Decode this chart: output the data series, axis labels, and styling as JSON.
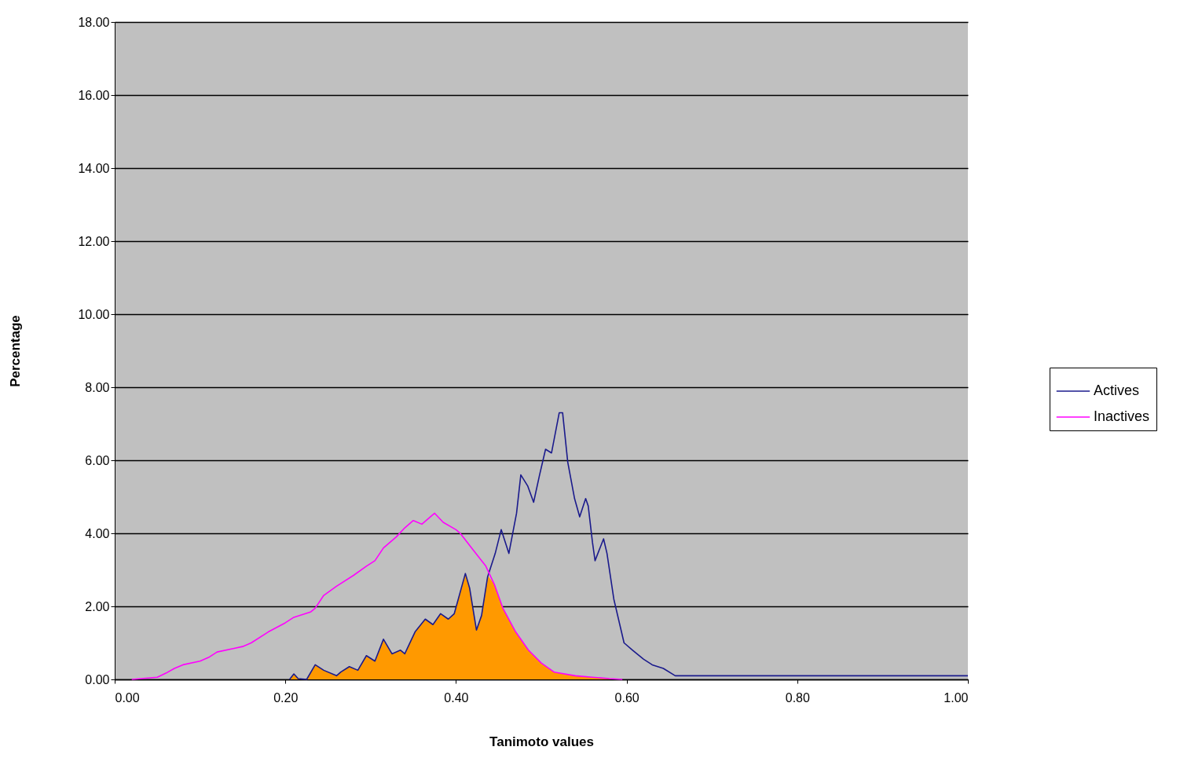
{
  "chart_data": {
    "type": "line",
    "xlabel": "Tanimoto values",
    "ylabel": "Percentage",
    "xlim": [
      0,
      1
    ],
    "ylim": [
      0,
      18
    ],
    "xticks": [
      {
        "value": 0,
        "label": "0.00"
      },
      {
        "value": 0.2,
        "label": "0.20"
      },
      {
        "value": 0.4,
        "label": "0.40"
      },
      {
        "value": 0.6,
        "label": "0.60"
      },
      {
        "value": 0.8,
        "label": "0.80"
      },
      {
        "value": 1,
        "label": "1.00"
      }
    ],
    "yticks": [
      {
        "value": 0,
        "label": "0.00"
      },
      {
        "value": 2,
        "label": "2.00"
      },
      {
        "value": 4,
        "label": "4.00"
      },
      {
        "value": 6,
        "label": "6.00"
      },
      {
        "value": 8,
        "label": "8.00"
      },
      {
        "value": 10,
        "label": "10.00"
      },
      {
        "value": 12,
        "label": "12.00"
      },
      {
        "value": 14,
        "label": "14.00"
      },
      {
        "value": 16,
        "label": "16.00"
      },
      {
        "value": 18,
        "label": "18.00"
      }
    ],
    "grid": "y",
    "legend": "right",
    "series": [
      {
        "type": "area",
        "color": "#ff9900",
        "x": [
          0.205,
          0.21,
          0.215,
          0.225,
          0.235,
          0.245,
          0.26,
          0.265,
          0.275,
          0.285,
          0.295,
          0.305,
          0.315,
          0.325,
          0.335,
          0.34,
          0.352,
          0.364,
          0.373,
          0.382,
          0.391,
          0.398,
          0.411,
          0.416,
          0.424,
          0.43,
          0.437,
          0.445,
          0.455,
          0.47,
          0.485,
          0.5,
          0.515,
          0.54,
          0.56,
          0.58,
          0.595
        ],
        "values": [
          0,
          0.15,
          0.02,
          0,
          0.4,
          0.25,
          0.1,
          0.2,
          0.35,
          0.25,
          0.65,
          0.5,
          1.1,
          0.7,
          0.8,
          0.7,
          1.3,
          1.65,
          1.5,
          1.8,
          1.65,
          1.8,
          2.9,
          2.5,
          1.35,
          1.75,
          2.85,
          2.6,
          1.95,
          1.3,
          0.8,
          0.45,
          0.2,
          0.1,
          0.06,
          0.02,
          0
        ]
      },
      {
        "name": "Actives",
        "color": "#1a1a8c",
        "x": [
          0.205,
          0.21,
          0.215,
          0.225,
          0.235,
          0.245,
          0.26,
          0.265,
          0.275,
          0.285,
          0.295,
          0.305,
          0.315,
          0.325,
          0.335,
          0.34,
          0.352,
          0.364,
          0.373,
          0.382,
          0.391,
          0.398,
          0.411,
          0.416,
          0.424,
          0.43,
          0.437,
          0.446,
          0.453,
          0.462,
          0.471,
          0.476,
          0.484,
          0.491,
          0.498,
          0.505,
          0.512,
          0.521,
          0.525,
          0.531,
          0.539,
          0.545,
          0.552,
          0.555,
          0.56,
          0.563,
          0.573,
          0.577,
          0.585,
          0.597,
          0.607,
          0.62,
          0.63,
          0.643,
          0.657,
          1.0
        ],
        "values": [
          0,
          0.15,
          0.02,
          0,
          0.4,
          0.25,
          0.1,
          0.2,
          0.35,
          0.25,
          0.65,
          0.5,
          1.1,
          0.7,
          0.8,
          0.7,
          1.3,
          1.65,
          1.5,
          1.8,
          1.65,
          1.8,
          2.9,
          2.5,
          1.35,
          1.75,
          2.8,
          3.45,
          4.1,
          3.45,
          4.55,
          5.6,
          5.3,
          4.85,
          5.6,
          6.3,
          6.2,
          7.3,
          7.3,
          5.95,
          4.95,
          4.45,
          4.95,
          4.75,
          3.75,
          3.25,
          3.85,
          3.45,
          2.2,
          1.0,
          0.8,
          0.55,
          0.4,
          0.3,
          0.1,
          0.1
        ]
      },
      {
        "name": "Inactives",
        "color": "#ff00ff",
        "x": [
          0.02,
          0.05,
          0.06,
          0.07,
          0.08,
          0.1,
          0.11,
          0.12,
          0.14,
          0.15,
          0.16,
          0.18,
          0.2,
          0.21,
          0.23,
          0.235,
          0.245,
          0.26,
          0.28,
          0.295,
          0.305,
          0.315,
          0.33,
          0.34,
          0.35,
          0.36,
          0.375,
          0.385,
          0.4,
          0.405,
          0.42,
          0.435,
          0.445,
          0.455,
          0.47,
          0.485,
          0.5,
          0.515,
          0.54,
          0.56,
          0.58,
          0.595
        ],
        "values": [
          0,
          0.06,
          0.17,
          0.3,
          0.4,
          0.5,
          0.6,
          0.75,
          0.85,
          0.9,
          1.0,
          1.3,
          1.55,
          1.7,
          1.85,
          1.95,
          2.3,
          2.55,
          2.85,
          3.1,
          3.25,
          3.6,
          3.9,
          4.15,
          4.35,
          4.25,
          4.55,
          4.3,
          4.1,
          4.0,
          3.55,
          3.1,
          2.6,
          1.95,
          1.3,
          0.8,
          0.45,
          0.2,
          0.1,
          0.06,
          0.02,
          0
        ]
      }
    ]
  }
}
